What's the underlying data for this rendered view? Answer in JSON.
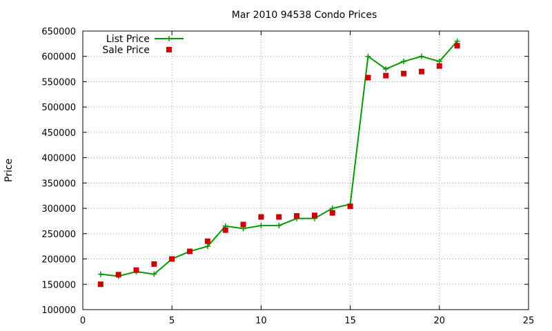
{
  "chart_data": {
    "type": "line",
    "title": "Mar 2010 94538 Condo Prices",
    "xlabel": "",
    "ylabel": "Price",
    "xlim": [
      0,
      25
    ],
    "ylim": [
      100000,
      650000
    ],
    "xticks": [
      0,
      5,
      10,
      15,
      20,
      25
    ],
    "yticks": [
      100000,
      150000,
      200000,
      250000,
      300000,
      350000,
      400000,
      450000,
      500000,
      550000,
      600000,
      650000
    ],
    "grid": true,
    "legend_position": "top-left",
    "series": [
      {
        "name": "List Price",
        "style": "line-with-cross-markers",
        "color": "#009900",
        "x": [
          1,
          2,
          3,
          4,
          5,
          6,
          7,
          8,
          9,
          10,
          11,
          12,
          13,
          14,
          15,
          16,
          17,
          18,
          19,
          20,
          21
        ],
        "y": [
          170000,
          166000,
          175000,
          170000,
          200000,
          215000,
          225000,
          265000,
          260000,
          266000,
          266000,
          280000,
          280000,
          300000,
          308000,
          600000,
          575000,
          590000,
          600000,
          590000,
          630000
        ]
      },
      {
        "name": "Sale Price",
        "style": "square-markers",
        "color": "#cc0000",
        "x": [
          1,
          2,
          3,
          4,
          5,
          6,
          7,
          8,
          9,
          10,
          11,
          12,
          13,
          14,
          15,
          16,
          17,
          18,
          19,
          20,
          21
        ],
        "y": [
          150000,
          169000,
          178000,
          190000,
          200000,
          215000,
          235000,
          257000,
          268000,
          283000,
          283000,
          285000,
          286000,
          291000,
          304000,
          558000,
          562000,
          566000,
          570000,
          581000,
          621000
        ]
      }
    ]
  }
}
